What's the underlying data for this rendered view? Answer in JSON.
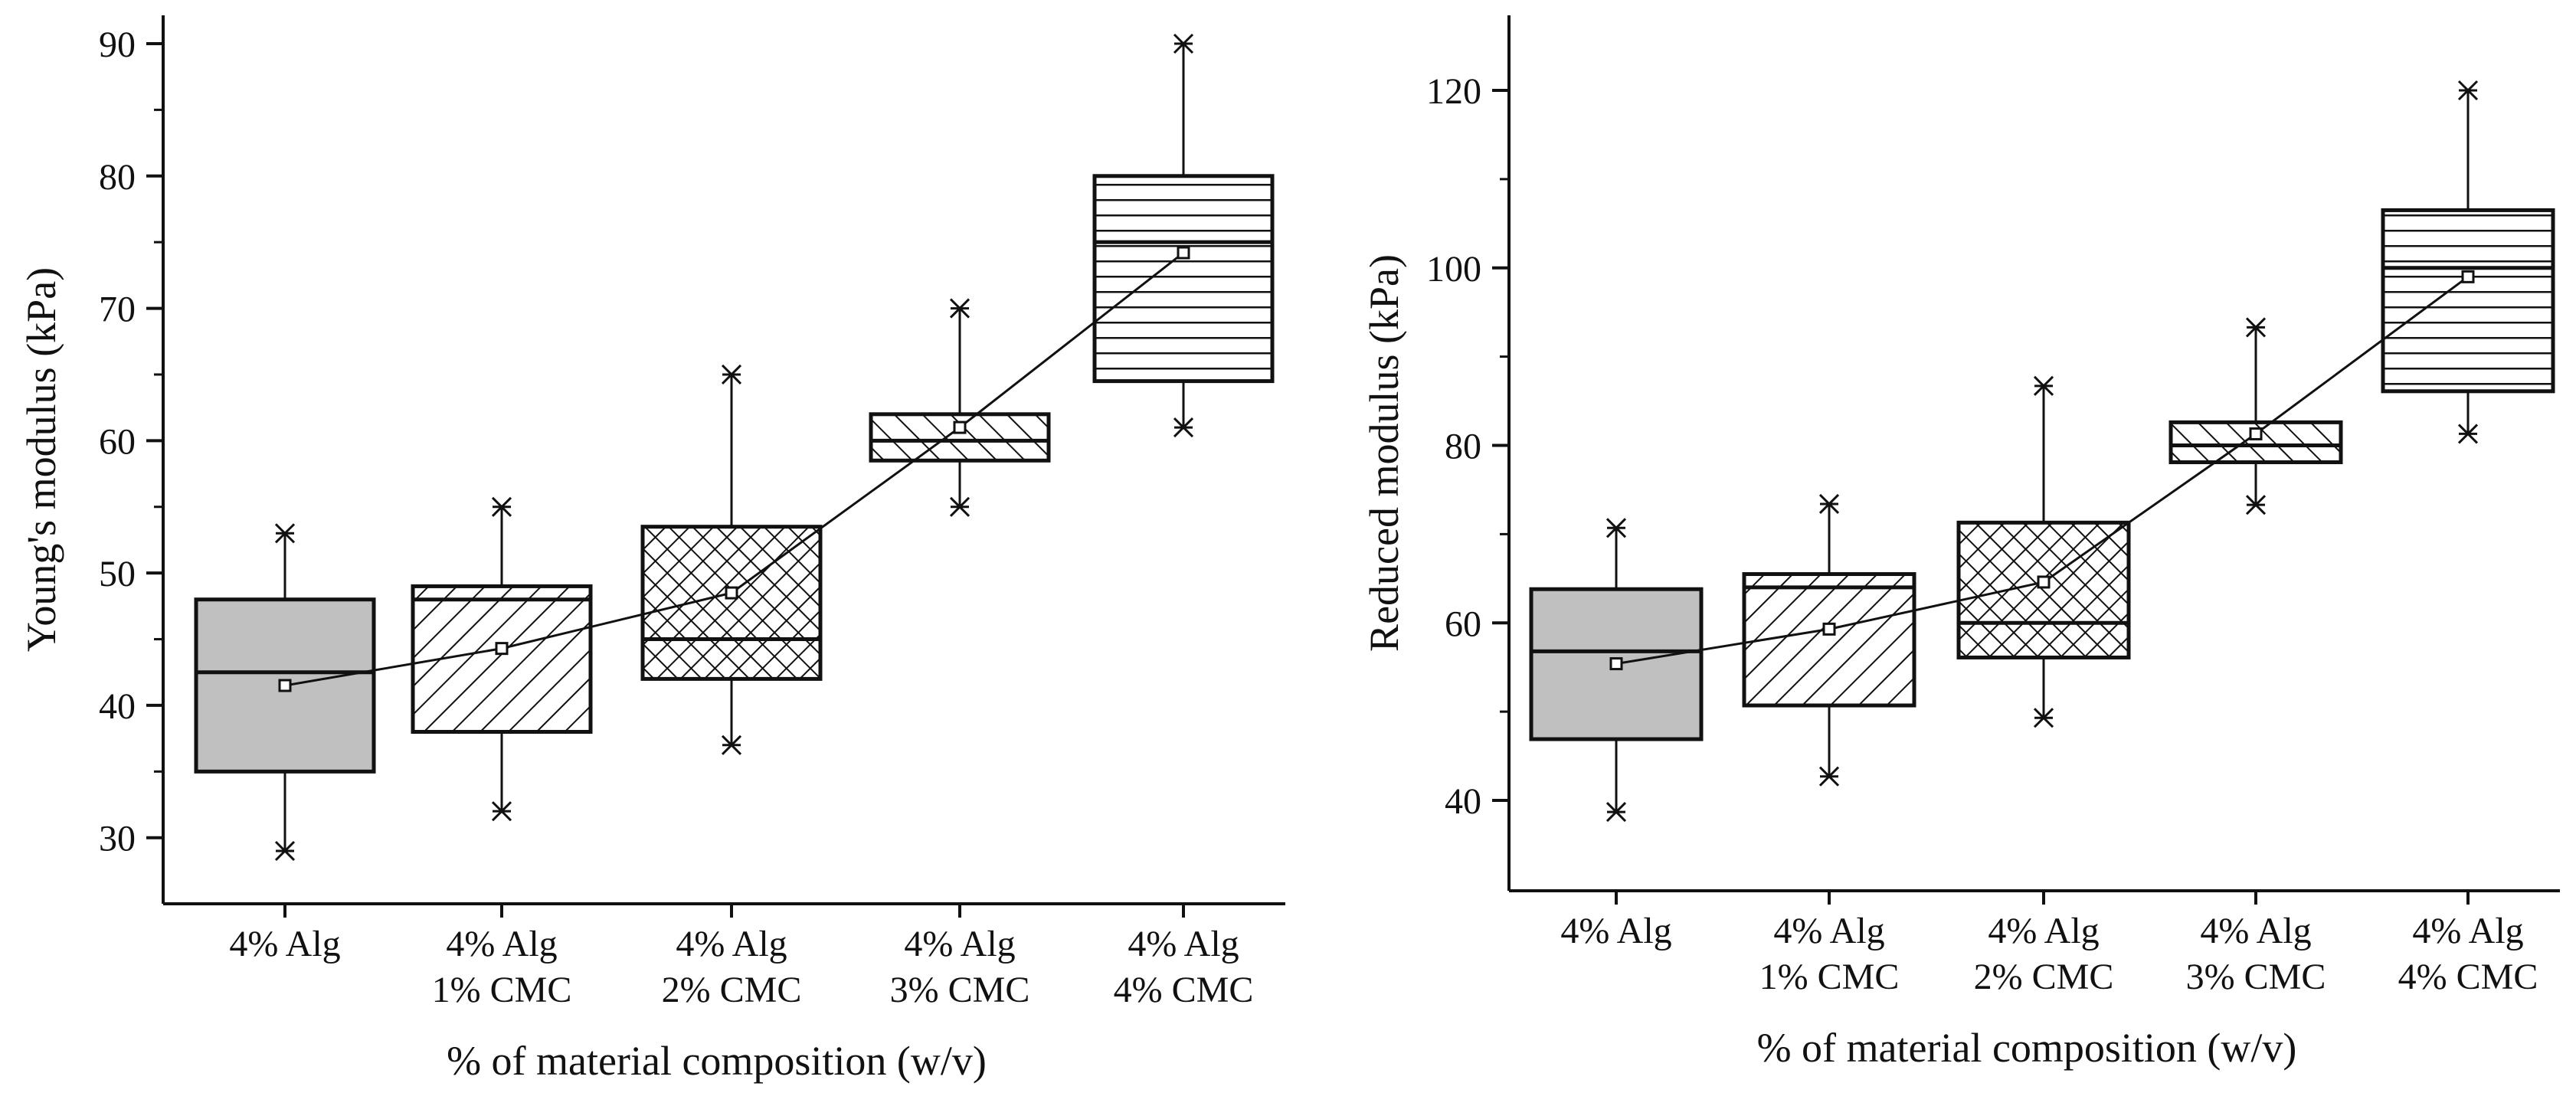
{
  "chart_data": [
    {
      "type": "box",
      "xlabel": "% of material composition (w/v)",
      "ylabel": "Young's modulus (kPa)",
      "ylim": [
        25,
        90
      ],
      "yticks": [
        30,
        40,
        50,
        60,
        70,
        80,
        90
      ],
      "categories": [
        {
          "line1": "4% Alg",
          "line2": ""
        },
        {
          "line1": "4% Alg",
          "line2": "1% CMC"
        },
        {
          "line1": "4% Alg",
          "line2": "2% CMC"
        },
        {
          "line1": "4% Alg",
          "line2": "3% CMC"
        },
        {
          "line1": "4% Alg",
          "line2": "4% CMC"
        }
      ],
      "boxes": [
        {
          "min": 29,
          "q1": 35,
          "median": 42.5,
          "q3": 48,
          "max": 53,
          "mean": 41.5,
          "fill": "#c0c0c0",
          "pattern": "none"
        },
        {
          "min": 32,
          "q1": 38,
          "median": 48,
          "q3": 49,
          "max": 55,
          "mean": 44.3,
          "fill": "#ffffff",
          "pattern": "diag-right"
        },
        {
          "min": 37,
          "q1": 42,
          "median": 45,
          "q3": 53.5,
          "max": 65,
          "mean": 48.5,
          "fill": "#ffffff",
          "pattern": "cross"
        },
        {
          "min": 55,
          "q1": 58.5,
          "median": 60,
          "q3": 62,
          "max": 70,
          "mean": 61,
          "fill": "#ffffff",
          "pattern": "diag-left"
        },
        {
          "min": 61,
          "q1": 64.5,
          "median": 75,
          "q3": 80,
          "max": 90,
          "mean": 74.2,
          "fill": "#ffffff",
          "pattern": "horizontal"
        }
      ]
    },
    {
      "type": "box",
      "xlabel": "% of material composition (w/v)",
      "ylabel": "Reduced modulus (kPa)",
      "ylim": [
        30,
        128
      ],
      "yticks": [
        40,
        60,
        80,
        100,
        120
      ],
      "categories": [
        {
          "line1": "4% Alg",
          "line2": ""
        },
        {
          "line1": "4% Alg",
          "line2": "1% CMC"
        },
        {
          "line1": "4% Alg",
          "line2": "2% CMC"
        },
        {
          "line1": "4% Alg",
          "line2": "3% CMC"
        },
        {
          "line1": "4% Alg",
          "line2": "4% CMC"
        }
      ],
      "boxes": [
        {
          "min": 38.7,
          "q1": 46.9,
          "median": 56.8,
          "q3": 63.8,
          "max": 70.7,
          "mean": 55.4,
          "fill": "#c0c0c0",
          "pattern": "none"
        },
        {
          "min": 42.7,
          "q1": 50.7,
          "median": 64,
          "q3": 65.5,
          "max": 73.4,
          "mean": 59.3,
          "fill": "#ffffff",
          "pattern": "diag-right"
        },
        {
          "min": 49.3,
          "q1": 56.1,
          "median": 60,
          "q3": 71.3,
          "max": 86.7,
          "mean": 64.6,
          "fill": "#ffffff",
          "pattern": "cross"
        },
        {
          "min": 73.3,
          "q1": 78.1,
          "median": 80,
          "q3": 82.6,
          "max": 93.3,
          "mean": 81.3,
          "fill": "#ffffff",
          "pattern": "diag-left"
        },
        {
          "min": 81.3,
          "q1": 86.1,
          "median": 100,
          "q3": 106.5,
          "max": 120,
          "mean": 99,
          "fill": "#ffffff",
          "pattern": "horizontal"
        }
      ]
    }
  ]
}
